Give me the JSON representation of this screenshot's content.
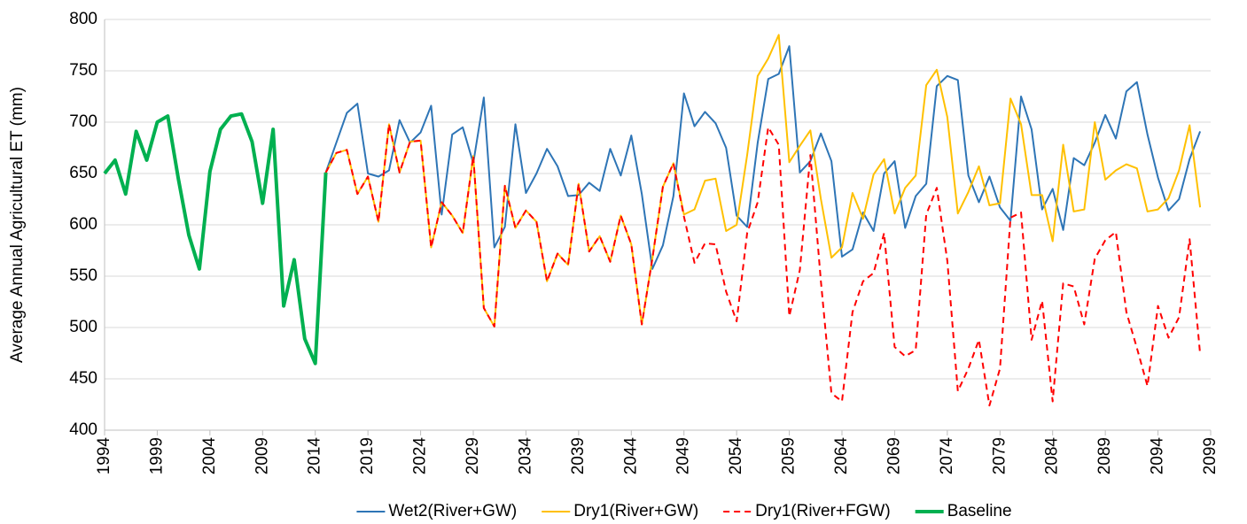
{
  "chart_data": {
    "type": "line",
    "y_label": "Average Annual Agricultural  ET (mm)",
    "x": [
      1994,
      1995,
      1996,
      1997,
      1998,
      1999,
      2000,
      2001,
      2002,
      2003,
      2004,
      2005,
      2006,
      2007,
      2008,
      2009,
      2010,
      2011,
      2012,
      2013,
      2014,
      2015,
      2016,
      2017,
      2018,
      2019,
      2020,
      2021,
      2022,
      2023,
      2024,
      2025,
      2026,
      2027,
      2028,
      2029,
      2030,
      2031,
      2032,
      2033,
      2034,
      2035,
      2036,
      2037,
      2038,
      2039,
      2040,
      2041,
      2042,
      2043,
      2044,
      2045,
      2046,
      2047,
      2048,
      2049,
      2050,
      2051,
      2052,
      2053,
      2054,
      2055,
      2056,
      2057,
      2058,
      2059,
      2060,
      2061,
      2062,
      2063,
      2064,
      2065,
      2066,
      2067,
      2068,
      2069,
      2070,
      2071,
      2072,
      2073,
      2074,
      2075,
      2076,
      2077,
      2078,
      2079,
      2080,
      2081,
      2082,
      2083,
      2084,
      2085,
      2086,
      2087,
      2088,
      2089,
      2090,
      2091,
      2092,
      2093,
      2094,
      2095,
      2096,
      2097,
      2098
    ],
    "series": [
      {
        "name": "Wet2(River+GW)",
        "color": "#2e75b6",
        "linewidth": 2,
        "values": [
          null,
          null,
          null,
          null,
          null,
          null,
          null,
          null,
          null,
          null,
          null,
          null,
          null,
          null,
          null,
          null,
          null,
          null,
          null,
          null,
          null,
          651,
          680,
          709,
          718,
          650,
          647,
          653,
          702,
          680,
          690,
          716,
          610,
          688,
          695,
          660,
          724,
          578,
          598,
          698,
          631,
          650,
          674,
          657,
          628,
          629,
          641,
          633,
          674,
          648,
          687,
          630,
          557,
          580,
          628,
          728,
          696,
          710,
          699,
          675,
          609,
          598,
          680,
          742,
          747,
          774,
          651,
          662,
          689,
          662,
          569,
          576,
          612,
          594,
          650,
          662,
          597,
          628,
          640,
          735,
          745,
          741,
          648,
          622,
          647,
          617,
          604,
          725,
          693,
          615,
          635,
          595,
          665,
          658,
          680,
          707,
          684,
          730,
          739,
          688,
          646,
          614,
          625,
          664,
          691
        ]
      },
      {
        "name": "Dry1(River+GW)",
        "color": "#ffc000",
        "linewidth": 2,
        "values": [
          null,
          null,
          null,
          null,
          null,
          null,
          null,
          null,
          null,
          null,
          null,
          null,
          null,
          null,
          null,
          null,
          null,
          null,
          null,
          null,
          null,
          651,
          670,
          673,
          630,
          647,
          603,
          698,
          651,
          681,
          682,
          578,
          622,
          609,
          592,
          667,
          519,
          501,
          638,
          597,
          614,
          603,
          545,
          572,
          561,
          640,
          574,
          589,
          564,
          609,
          581,
          503,
          567,
          637,
          660,
          610,
          615,
          643,
          645,
          594,
          600,
          668,
          745,
          762,
          785,
          661,
          677,
          692,
          625,
          568,
          578,
          631,
          606,
          649,
          664,
          611,
          636,
          648,
          736,
          751,
          705,
          611,
          632,
          657,
          619,
          621,
          723,
          698,
          629,
          629,
          584,
          678,
          613,
          615,
          700,
          644,
          653,
          659,
          655,
          613,
          615,
          626,
          653,
          697,
          617
        ]
      },
      {
        "name": "Dry1(River+FGW)",
        "color": "#ff0000",
        "linewidth": 2,
        "linestyle": "dashed",
        "values": [
          null,
          null,
          null,
          null,
          null,
          null,
          null,
          null,
          null,
          null,
          null,
          null,
          null,
          null,
          null,
          null,
          null,
          null,
          null,
          null,
          null,
          651,
          670,
          673,
          630,
          647,
          603,
          698,
          651,
          681,
          682,
          578,
          622,
          609,
          592,
          667,
          519,
          501,
          638,
          597,
          614,
          603,
          545,
          572,
          561,
          640,
          574,
          589,
          564,
          609,
          581,
          503,
          567,
          637,
          660,
          608,
          563,
          582,
          581,
          535,
          506,
          592,
          622,
          695,
          678,
          511,
          556,
          668,
          545,
          436,
          428,
          515,
          545,
          553,
          592,
          481,
          472,
          478,
          610,
          636,
          565,
          438,
          460,
          488,
          424,
          460,
          607,
          612,
          488,
          526,
          428,
          543,
          540,
          503,
          567,
          585,
          593,
          515,
          480,
          443,
          521,
          490,
          510,
          586,
          474
        ]
      },
      {
        "name": "Baseline",
        "color": "#00b050",
        "linewidth": 4,
        "values": [
          650,
          663,
          630,
          691,
          663,
          700,
          706,
          645,
          590,
          557,
          652,
          693,
          706,
          708,
          681,
          621,
          693,
          521,
          566,
          489,
          465,
          651,
          null,
          null,
          null,
          null,
          null,
          null,
          null,
          null,
          null,
          null,
          null,
          null,
          null,
          null,
          null,
          null,
          null,
          null,
          null,
          null,
          null,
          null,
          null,
          null,
          null,
          null,
          null,
          null,
          null,
          null,
          null,
          null,
          null,
          null,
          null,
          null,
          null,
          null,
          null,
          null,
          null,
          null,
          null,
          null,
          null,
          null,
          null,
          null,
          null,
          null,
          null,
          null,
          null,
          null,
          null,
          null,
          null,
          null,
          null,
          null,
          null,
          null,
          null,
          null,
          null,
          null,
          null,
          null,
          null,
          null,
          null,
          null,
          null,
          null,
          null,
          null,
          null,
          null,
          null,
          null,
          null,
          null,
          null
        ]
      }
    ],
    "xlim": [
      1994,
      2099
    ],
    "xticks": [
      1994,
      1999,
      2004,
      2009,
      2014,
      2019,
      2024,
      2029,
      2034,
      2039,
      2044,
      2049,
      2054,
      2059,
      2064,
      2069,
      2074,
      2079,
      2084,
      2089,
      2094,
      2099
    ],
    "ylim": [
      400,
      800
    ],
    "yticks": [
      400,
      450,
      500,
      550,
      600,
      650,
      700,
      750,
      800
    ],
    "grid": true,
    "legend": "bottom"
  }
}
